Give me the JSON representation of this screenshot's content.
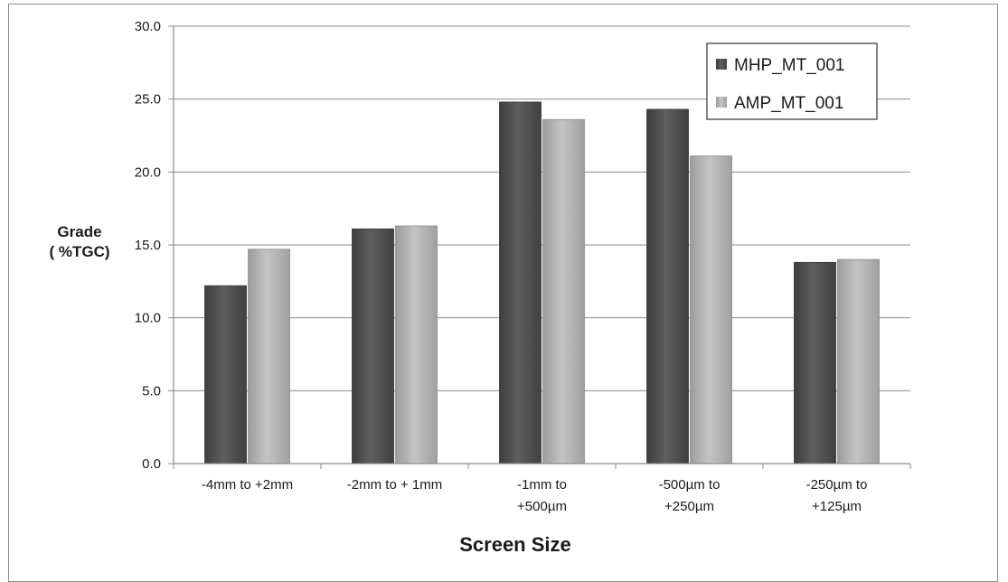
{
  "chart_data": {
    "type": "bar",
    "categories": [
      [
        "-4mm to +2mm"
      ],
      [
        "-2mm to + 1mm"
      ],
      [
        "-1mm to",
        "+500µm"
      ],
      [
        "-500µm to",
        "+250µm"
      ],
      [
        "-250µm to",
        "+125µm"
      ]
    ],
    "series": [
      {
        "name": "MHP_MT_001",
        "values": [
          12.2,
          16.1,
          24.8,
          24.3,
          13.8
        ],
        "color": "#555555"
      },
      {
        "name": "AMP_MT_001",
        "values": [
          14.7,
          16.3,
          23.6,
          21.1,
          14.0
        ],
        "color": "#b4b4b4"
      }
    ],
    "title": "",
    "xlabel": "Screen Size",
    "ylabel": [
      "Grade",
      "( %TGC)"
    ],
    "ylim": [
      0,
      30
    ],
    "yticks": [
      "0.0",
      "5.0",
      "10.0",
      "15.0",
      "20.0",
      "25.0",
      "30.0"
    ],
    "grid": true,
    "legend_position": "top-right"
  }
}
